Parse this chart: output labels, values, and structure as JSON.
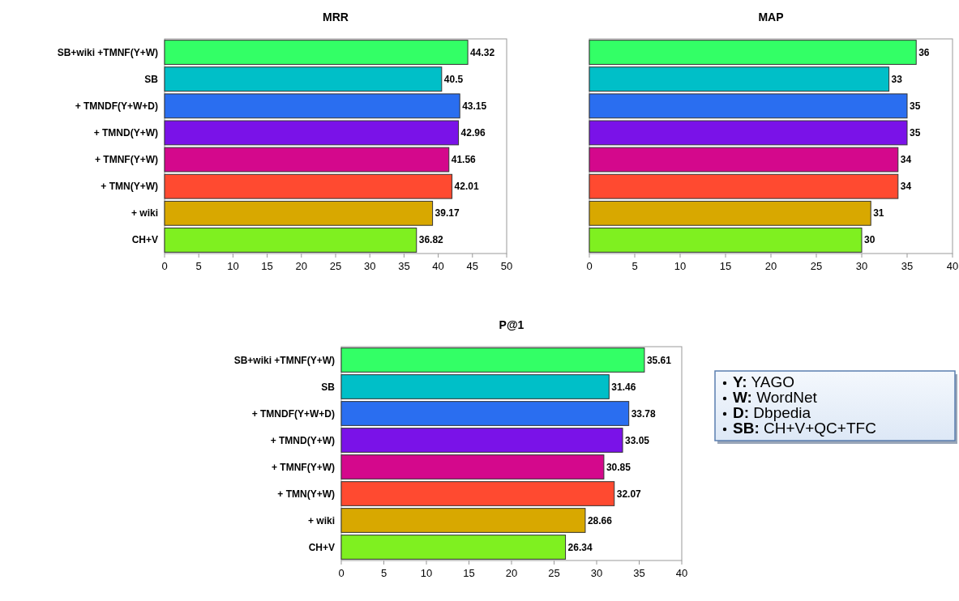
{
  "chart_data": [
    {
      "type": "bar",
      "orientation": "horizontal",
      "title": "MRR",
      "categories": [
        "SB+wiki +TMNF(Y+W)",
        "SB",
        "+ TMNDF(Y+W+D)",
        "+ TMND(Y+W)",
        "+ TMNF(Y+W)",
        "+ TMN(Y+W)",
        "+ wiki",
        "CH+V"
      ],
      "values": [
        44.32,
        40.5,
        43.15,
        42.96,
        41.56,
        42.01,
        39.17,
        36.82
      ],
      "colors": [
        "#33ff66",
        "#00bfc8",
        "#2a6ef0",
        "#7a12e8",
        "#d4088c",
        "#ff4a30",
        "#d8a800",
        "#7ff020"
      ],
      "xlim": [
        0,
        50
      ],
      "xticks": [
        0,
        5,
        10,
        15,
        20,
        25,
        30,
        35,
        40,
        45,
        50
      ],
      "data_labels": true
    },
    {
      "type": "bar",
      "orientation": "horizontal",
      "title": "MAP",
      "categories": [
        null,
        null,
        null,
        null,
        null,
        null,
        null,
        null
      ],
      "values": [
        36,
        33,
        35,
        35,
        34,
        34,
        31,
        30
      ],
      "colors": [
        "#33ff66",
        "#00bfc8",
        "#2a6ef0",
        "#7a12e8",
        "#d4088c",
        "#ff4a30",
        "#d8a800",
        "#7ff020"
      ],
      "xlim": [
        0,
        40
      ],
      "xticks": [
        0,
        5,
        10,
        15,
        20,
        25,
        30,
        35,
        40
      ],
      "data_labels": true
    },
    {
      "type": "bar",
      "orientation": "horizontal",
      "title": "P@1",
      "categories": [
        "SB+wiki +TMNF(Y+W)",
        "SB",
        "+ TMNDF(Y+W+D)",
        "+ TMND(Y+W)",
        "+ TMNF(Y+W)",
        "+ TMN(Y+W)",
        "+ wiki",
        "CH+V"
      ],
      "values": [
        35.61,
        31.46,
        33.78,
        33.05,
        30.85,
        32.07,
        28.66,
        26.34
      ],
      "colors": [
        "#33ff66",
        "#00bfc8",
        "#2a6ef0",
        "#7a12e8",
        "#d4088c",
        "#ff4a30",
        "#d8a800",
        "#7ff020"
      ],
      "xlim": [
        0,
        40
      ],
      "xticks": [
        0,
        5,
        10,
        15,
        20,
        25,
        30,
        35,
        40
      ],
      "data_labels": true
    },
    {
      "type": "other",
      "annotations": [
        "Y: YAGO",
        "W: WordNet",
        "D: Dbpedia",
        "SB: CH+V+QC+TFC"
      ]
    }
  ]
}
